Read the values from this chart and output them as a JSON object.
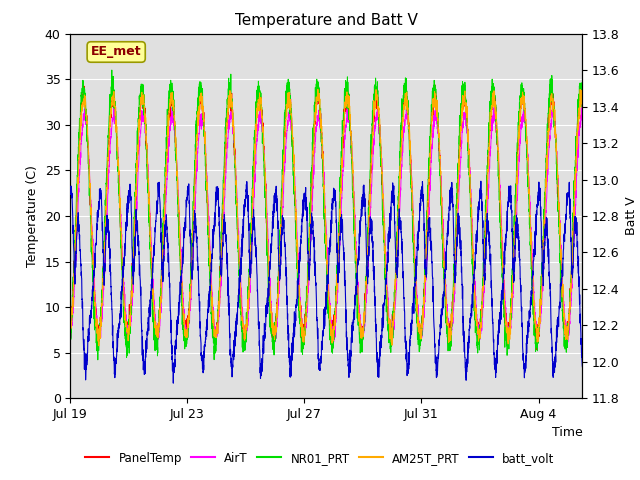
{
  "title": "Temperature and Batt V",
  "xlabel": "Time",
  "ylabel_left": "Temperature (C)",
  "ylabel_right": "Batt V",
  "annotation": "EE_met",
  "ylim_left": [
    0,
    40
  ],
  "ylim_right": [
    11.8,
    13.8
  ],
  "xtick_labels": [
    "Jul 19",
    "Jul 23",
    "Jul 27",
    "Jul 31",
    "Aug 4"
  ],
  "xtick_positions": [
    0,
    4,
    8,
    12,
    16
  ],
  "xlim": [
    0,
    17.5
  ],
  "plot_bg_color": "#e0e0e0",
  "fig_bg_color": "#ffffff",
  "series": [
    {
      "name": "PanelTemp",
      "color": "#ff0000"
    },
    {
      "name": "AirT",
      "color": "#ff00ff"
    },
    {
      "name": "NR01_PRT",
      "color": "#00dd00"
    },
    {
      "name": "AM25T_PRT",
      "color": "#ffaa00"
    },
    {
      "name": "batt_volt",
      "color": "#0000cc"
    }
  ],
  "n_points": 3400,
  "yticks_left": [
    0,
    5,
    10,
    15,
    20,
    25,
    30,
    35,
    40
  ],
  "yticks_right": [
    11.8,
    12.0,
    12.2,
    12.4,
    12.6,
    12.8,
    13.0,
    13.2,
    13.4,
    13.6,
    13.8
  ]
}
